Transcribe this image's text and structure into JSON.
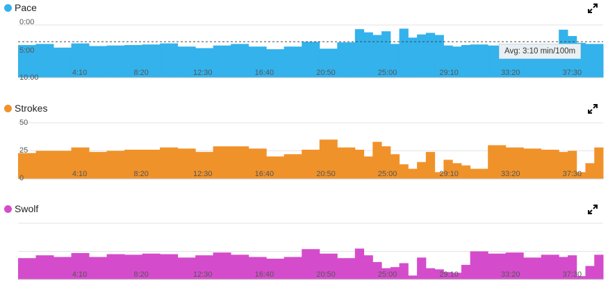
{
  "x_ticks": [
    "4:10",
    "8:20",
    "12:30",
    "16:40",
    "20:50",
    "25:00",
    "29:10",
    "33:20",
    "37:30"
  ],
  "panels": [
    {
      "key": "pace",
      "title": "Pace",
      "color": "#33b2ec",
      "y_ticks": [
        "0:00",
        "5:00",
        "10:00"
      ],
      "avg_label": "Avg: 3:10 min/100m"
    },
    {
      "key": "strokes",
      "title": "Strokes",
      "color": "#f0922a",
      "y_ticks": [
        "50",
        "25",
        "0"
      ]
    },
    {
      "key": "swolf",
      "title": "Swolf",
      "color": "#d44ccb",
      "y_ticks": []
    }
  ],
  "chart_data": [
    {
      "type": "area",
      "title": "Pace",
      "x_unit": "elapsed time (min:sec)",
      "y_unit": "min/100m",
      "ylim": [
        10,
        0
      ],
      "y_inverted": true,
      "average": 3.17,
      "average_label": "Avg: 3:10 min/100m",
      "x_minutes": [
        0,
        1.2,
        2.4,
        3.6,
        4.8,
        6.0,
        7.2,
        8.4,
        9.6,
        10.8,
        12.0,
        13.2,
        14.4,
        15.6,
        16.8,
        18.0,
        19.2,
        20.4,
        21.6,
        22.8,
        23.4,
        24.0,
        24.6,
        25.2,
        25.8,
        26.4,
        27.0,
        27.6,
        28.2,
        28.8,
        29.4,
        30.0,
        30.6,
        31.8,
        33.0,
        34.2,
        35.4,
        36.6,
        37.2,
        37.8,
        38.4,
        39.0
      ],
      "values": [
        3.8,
        3.6,
        4.3,
        3.5,
        4.0,
        3.9,
        3.8,
        3.7,
        3.5,
        4.1,
        4.4,
        3.9,
        3.6,
        4.1,
        4.6,
        4.1,
        3.2,
        4.5,
        3.3,
        0.8,
        1.4,
        1.9,
        1.2,
        3.6,
        0.7,
        2.4,
        1.8,
        1.5,
        1.9,
        3.9,
        4.1,
        3.8,
        3.7,
        3.9,
        3.8,
        3.6,
        3.7,
        0.9,
        2.1,
        3.4,
        3.6,
        3.6
      ],
      "series": [
        {
          "values": "values"
        }
      ],
      "grid": true
    },
    {
      "type": "bar",
      "title": "Strokes",
      "ylim": [
        0,
        50
      ],
      "x_minutes": [
        0,
        1.2,
        2.4,
        3.6,
        4.8,
        6.0,
        7.2,
        8.4,
        9.6,
        10.8,
        12.0,
        13.2,
        14.4,
        15.6,
        16.8,
        18.0,
        19.2,
        20.4,
        21.6,
        22.8,
        23.4,
        24.0,
        24.6,
        25.2,
        25.8,
        26.4,
        27.0,
        27.6,
        28.2,
        28.8,
        29.4,
        30.0,
        30.6,
        31.8,
        33.0,
        34.2,
        35.4,
        36.6,
        37.2,
        37.8,
        38.4,
        39.0
      ],
      "values": [
        23,
        25,
        25,
        28,
        24,
        25,
        26,
        26,
        28,
        27,
        24,
        29,
        29,
        27,
        20,
        22,
        26,
        35,
        28,
        26,
        20,
        33,
        29,
        22,
        13,
        9,
        15,
        24,
        6,
        17,
        14,
        12,
        9,
        30,
        28,
        27,
        26,
        24,
        25,
        6,
        14,
        28
      ],
      "grid": true
    },
    {
      "type": "bar",
      "title": "Swolf",
      "x_minutes": [
        0,
        1.2,
        2.4,
        3.6,
        4.8,
        6.0,
        7.2,
        8.4,
        9.6,
        10.8,
        12.0,
        13.2,
        14.4,
        15.6,
        16.8,
        18.0,
        19.2,
        20.4,
        21.6,
        22.8,
        23.4,
        24.0,
        24.6,
        25.2,
        25.8,
        26.4,
        27.0,
        27.6,
        28.2,
        28.8,
        29.4,
        30.0,
        30.6,
        31.8,
        33.0,
        34.2,
        35.4,
        36.6,
        37.2,
        37.8,
        38.4,
        39.0
      ],
      "values": [
        38,
        43,
        40,
        47,
        40,
        45,
        44,
        46,
        45,
        39,
        43,
        48,
        44,
        40,
        37,
        40,
        54,
        46,
        38,
        55,
        43,
        31,
        20,
        22,
        29,
        7,
        39,
        20,
        18,
        13,
        12,
        26,
        50,
        46,
        48,
        39,
        44,
        40,
        43,
        6,
        24,
        44
      ],
      "grid": true
    }
  ]
}
